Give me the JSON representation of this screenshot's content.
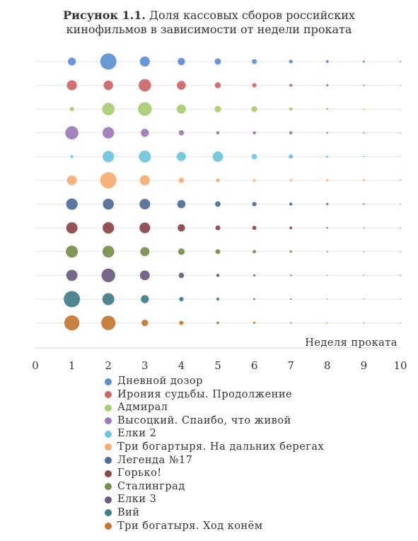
{
  "chart_data": {
    "type": "bubble",
    "title_prefix": "Рисунок 1.1.",
    "title_line1": "Доля кассовых сборов российских",
    "title_line2": "кинофильмов в зависимости от недели проката",
    "xlabel": "Неделя проката",
    "xlim": [
      0,
      10
    ],
    "xticks": [
      "0",
      "1",
      "2",
      "3",
      "4",
      "5",
      "6",
      "7",
      "8",
      "9",
      "10"
    ],
    "legend_position": "bottom",
    "grid": "horizontal",
    "series": [
      {
        "name": "Дневной дозор",
        "color": "#5b8fd1",
        "values": [
          2.6,
          11,
          4.2,
          2.3,
          1.7,
          1,
          0.6,
          0.35,
          0.2,
          0.1
        ]
      },
      {
        "name": "Ирония судьбы. Продолжение",
        "color": "#cc6667",
        "values": [
          4.2,
          3.8,
          6.5,
          3.3,
          1.5,
          0.8,
          0.4,
          0.2,
          0.1,
          0.05
        ]
      },
      {
        "name": "Адмирал",
        "color": "#a8cd72",
        "values": [
          0.8,
          6.5,
          7.8,
          3.5,
          1.8,
          1.5,
          0.5,
          0.2,
          0.1,
          0.05
        ]
      },
      {
        "name": "Высоцкий. Спаибо, что живой",
        "color": "#9b7ab8",
        "values": [
          7.2,
          5.5,
          2.7,
          1.2,
          0.45,
          0.45,
          0.45,
          0.15,
          0.1,
          0.05
        ]
      },
      {
        "name": "Елки 2",
        "color": "#6fc6dc",
        "values": [
          0.35,
          5.5,
          6,
          3.5,
          4.5,
          1.2,
          0.8,
          0.2,
          0.1,
          0.05
        ]
      },
      {
        "name": "Три богартыря. На дальних берегах",
        "color": "#f6ad70",
        "values": [
          4,
          11,
          4.2,
          1.2,
          0.6,
          0.3,
          0.2,
          0.2,
          0.15,
          0.1
        ]
      },
      {
        "name": "Легенда №17",
        "color": "#4f6c97",
        "values": [
          5.5,
          5,
          4.7,
          2.8,
          1.3,
          0.8,
          0.4,
          0.2,
          0.1,
          0.05
        ]
      },
      {
        "name": "Горько!",
        "color": "#8b4548",
        "values": [
          5.3,
          5.5,
          4.8,
          2.3,
          1,
          0.7,
          0.3,
          0.1,
          0.05,
          0.05
        ]
      },
      {
        "name": "Сталинград",
        "color": "#778f4a",
        "values": [
          6,
          5.8,
          3.5,
          1.8,
          1,
          0.5,
          0.25,
          0.1,
          0.05,
          0.05
        ]
      },
      {
        "name": "Елки 3",
        "color": "#6b5a7e",
        "values": [
          5.2,
          7.8,
          4,
          1.2,
          0.45,
          0.2,
          0.1,
          0.05,
          0.05,
          0.05
        ]
      },
      {
        "name": "Вий",
        "color": "#3f7d88",
        "values": [
          11,
          6,
          2.7,
          0.8,
          0.35,
          0.15,
          0.1,
          0.05,
          0.05,
          0.05
        ]
      },
      {
        "name": "Три богатыря. Ход конём",
        "color": "#c4762f",
        "values": [
          9.5,
          8.5,
          1.8,
          0.75,
          0.3,
          0.2,
          0.1,
          0.05,
          0.05,
          0.05
        ]
      }
    ]
  }
}
